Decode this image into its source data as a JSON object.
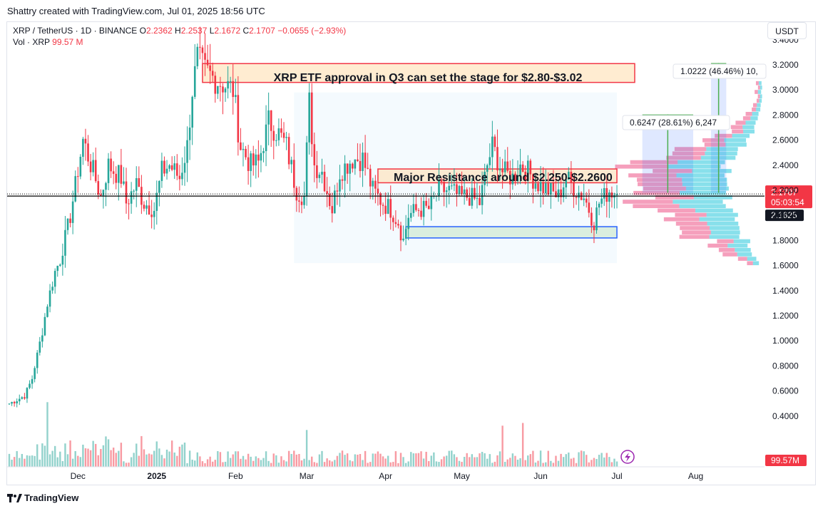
{
  "header": {
    "attribution": "Shattry created with TradingView.com, Jul 01, 2025 18:56 UTC"
  },
  "legend": {
    "symbol": "XRP / TetherUS · 1D · BINANCE",
    "o_label": "O",
    "o": "2.2362",
    "h_label": "H",
    "h": "2.2537",
    "l_label": "L",
    "l": "2.1672",
    "c_label": "C",
    "c": "2.1707",
    "change": "−0.0655 (−2.93%)",
    "vol_label": "Vol · XRP",
    "vol": "99.57 M"
  },
  "currency_button": "USDT",
  "footer": {
    "brand": "TradingView"
  },
  "colors": {
    "up": "#26a69a",
    "down": "#f23645",
    "price_line": "#000000"
  },
  "chart_data": {
    "type": "candlestick",
    "ylim": [
      0.3,
      3.45
    ],
    "y_ticks": [
      "3.4000",
      "3.2000",
      "3.0000",
      "2.8000",
      "2.6000",
      "2.4000",
      "2.2000",
      "2.0000",
      "1.8000",
      "1.6000",
      "1.4000",
      "1.2000",
      "1.0000",
      "0.8000",
      "0.6000",
      "0.4000"
    ],
    "x_ticks": [
      "Dec",
      "2025",
      "Feb",
      "Mar",
      "Apr",
      "May",
      "Jun",
      "Jul",
      "Aug"
    ],
    "price_anchors": [
      {
        "date": "2024-11-04",
        "price": 0.5
      },
      {
        "date": "2024-11-10",
        "price": 0.56
      },
      {
        "date": "2024-11-13",
        "price": 0.7
      },
      {
        "date": "2024-11-17",
        "price": 1.08
      },
      {
        "date": "2024-11-19",
        "price": 1.3
      },
      {
        "date": "2024-11-22",
        "price": 1.55
      },
      {
        "date": "2024-11-24",
        "price": 1.65
      },
      {
        "date": "2024-11-28",
        "price": 2.0
      },
      {
        "date": "2024-12-03",
        "price": 2.6
      },
      {
        "date": "2024-12-07",
        "price": 2.35
      },
      {
        "date": "2024-12-10",
        "price": 2.15
      },
      {
        "date": "2024-12-13",
        "price": 2.4
      },
      {
        "date": "2024-12-18",
        "price": 2.3
      },
      {
        "date": "2024-12-20",
        "price": 2.1
      },
      {
        "date": "2024-12-24",
        "price": 2.25
      },
      {
        "date": "2024-12-27",
        "price": 2.1
      },
      {
        "date": "2024-12-31",
        "price": 2.05
      },
      {
        "date": "2025-01-03",
        "price": 2.35
      },
      {
        "date": "2025-01-06",
        "price": 2.4
      },
      {
        "date": "2025-01-10",
        "price": 2.3
      },
      {
        "date": "2025-01-13",
        "price": 2.55
      },
      {
        "date": "2025-01-15",
        "price": 3.0
      },
      {
        "date": "2025-01-17",
        "price": 3.25
      },
      {
        "date": "2025-01-20",
        "price": 3.15
      },
      {
        "date": "2025-01-23",
        "price": 3.1
      },
      {
        "date": "2025-01-27",
        "price": 3.05
      },
      {
        "date": "2025-01-31",
        "price": 3.0
      },
      {
        "date": "2025-02-03",
        "price": 2.55
      },
      {
        "date": "2025-02-07",
        "price": 2.4
      },
      {
        "date": "2025-02-10",
        "price": 2.42
      },
      {
        "date": "2025-02-14",
        "price": 2.75
      },
      {
        "date": "2025-02-18",
        "price": 2.65
      },
      {
        "date": "2025-02-21",
        "price": 2.55
      },
      {
        "date": "2025-02-25",
        "price": 2.2
      },
      {
        "date": "2025-02-28",
        "price": 2.15
      },
      {
        "date": "2025-03-02",
        "price": 2.9
      },
      {
        "date": "2025-03-04",
        "price": 2.4
      },
      {
        "date": "2025-03-07",
        "price": 2.35
      },
      {
        "date": "2025-03-11",
        "price": 2.05
      },
      {
        "date": "2025-03-14",
        "price": 2.35
      },
      {
        "date": "2025-03-19",
        "price": 2.45
      },
      {
        "date": "2025-03-23",
        "price": 2.45
      },
      {
        "date": "2025-03-27",
        "price": 2.2
      },
      {
        "date": "2025-03-31",
        "price": 2.1
      },
      {
        "date": "2025-04-03",
        "price": 2.05
      },
      {
        "date": "2025-04-06",
        "price": 1.95
      },
      {
        "date": "2025-04-08",
        "price": 1.8
      },
      {
        "date": "2025-04-10",
        "price": 2.0
      },
      {
        "date": "2025-04-14",
        "price": 2.05
      },
      {
        "date": "2025-04-18",
        "price": 2.05
      },
      {
        "date": "2025-04-22",
        "price": 2.2
      },
      {
        "date": "2025-04-26",
        "price": 2.2
      },
      {
        "date": "2025-04-30",
        "price": 2.15
      },
      {
        "date": "2025-05-04",
        "price": 2.15
      },
      {
        "date": "2025-05-08",
        "price": 2.1
      },
      {
        "date": "2025-05-11",
        "price": 2.4
      },
      {
        "date": "2025-05-13",
        "price": 2.55
      },
      {
        "date": "2025-05-17",
        "price": 2.35
      },
      {
        "date": "2025-05-21",
        "price": 2.3
      },
      {
        "date": "2025-05-24",
        "price": 2.4
      },
      {
        "date": "2025-05-27",
        "price": 2.35
      },
      {
        "date": "2025-05-31",
        "price": 2.25
      },
      {
        "date": "2025-06-04",
        "price": 2.2
      },
      {
        "date": "2025-06-08",
        "price": 2.15
      },
      {
        "date": "2025-06-11",
        "price": 2.3
      },
      {
        "date": "2025-06-15",
        "price": 2.2
      },
      {
        "date": "2025-06-18",
        "price": 2.15
      },
      {
        "date": "2025-06-22",
        "price": 1.95
      },
      {
        "date": "2025-06-24",
        "price": 2.1
      },
      {
        "date": "2025-06-28",
        "price": 2.2
      },
      {
        "date": "2025-07-01",
        "price": 2.17
      }
    ],
    "last_price": "2.1707",
    "countdown": "05:03:54",
    "crosshair_price": "2.1625",
    "volume_label": "99.57M",
    "annotations": [
      {
        "text": "XRP ETF approval in Q3 can set the stage for $2.80-$3.02",
        "zone": [
          3.06,
          3.21
        ],
        "from": "2025-01-19",
        "to": "2025-07-08",
        "style": "resistance"
      },
      {
        "text": "Major Resistance around $2.250-$2.2600",
        "zone": [
          2.26,
          2.37
        ],
        "from": "2025-03-29",
        "to": "2025-07-01",
        "style": "resistance"
      },
      {
        "text": "",
        "zone": [
          1.82,
          1.91
        ],
        "from": "2025-04-09",
        "to": "2025-07-01",
        "style": "support"
      }
    ],
    "measures": [
      {
        "label": "0.6247 (28.61%) 6,247",
        "from_price": 2.18,
        "to_price": 2.8,
        "x_from": "2025-07-11",
        "x_to": "2025-07-31"
      },
      {
        "label": "1.0222 (46.46%) 10,",
        "from_price": 2.18,
        "to_price": 3.21,
        "x_from": "2025-08-07",
        "x_to": "2025-08-13"
      }
    ]
  }
}
